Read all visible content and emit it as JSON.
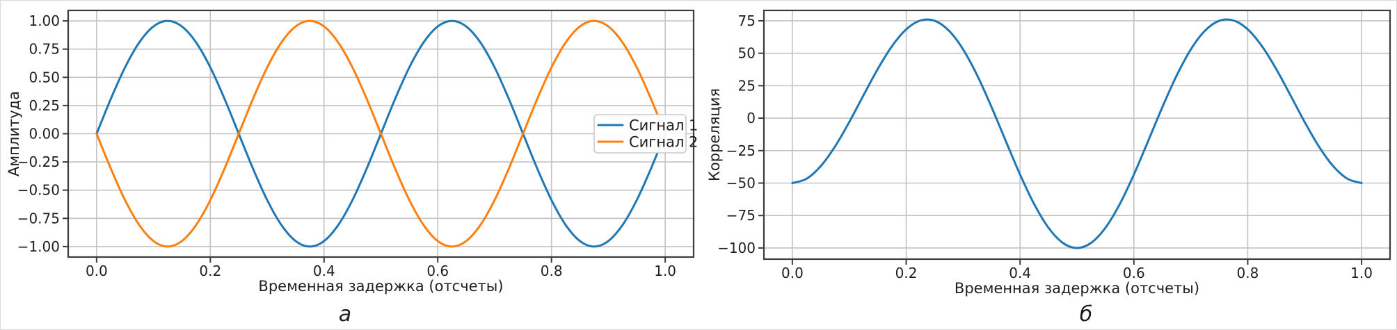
{
  "figure": {
    "background": "#ffffff",
    "colors": {
      "grid": "#c3c3c3",
      "spine": "#3c3c3c",
      "tick": "#3c3c3c",
      "text": "#1f1f1f",
      "legend_border": "#c9c9c9",
      "legend_background": "#ffffff"
    }
  },
  "chart_data": [
    {
      "type": "line",
      "caption": "а",
      "xlabel": "Временная задержка (отсчеты)",
      "ylabel": "Амплитуда",
      "xlim": [
        -0.05,
        1.05
      ],
      "ylim": [
        -1.093,
        1.093
      ],
      "xticks": [
        0,
        0.2,
        0.4,
        0.6,
        0.8,
        1.0
      ],
      "xtick_labels": [
        "0.0",
        "0.2",
        "0.4",
        "0.6",
        "0.8",
        "1.0"
      ],
      "yticks": [
        1.0,
        0.75,
        0.5,
        0.25,
        0,
        -0.25,
        -0.5,
        -0.75,
        -1.0
      ],
      "ytick_labels": [
        "1.00",
        "0.75",
        "0.50",
        "0.25",
        "0.00",
        "−0.25",
        "−0.50",
        "−0.75",
        "−1.00"
      ],
      "grid": true,
      "legend": {
        "position": "center right",
        "entries": [
          "Сигнал 1",
          "Сигнал 2"
        ]
      },
      "x": [
        0,
        0.025,
        0.05,
        0.075,
        0.1,
        0.125,
        0.15,
        0.175,
        0.2,
        0.225,
        0.25,
        0.275,
        0.3,
        0.325,
        0.35,
        0.375,
        0.4,
        0.425,
        0.45,
        0.475,
        0.5,
        0.525,
        0.55,
        0.575,
        0.6,
        0.625,
        0.65,
        0.675,
        0.7,
        0.725,
        0.75,
        0.775,
        0.8,
        0.825,
        0.85,
        0.875,
        0.9,
        0.925,
        0.95,
        0.975,
        1
      ],
      "series": [
        {
          "id": "signal1",
          "name": "Сигнал 1",
          "color": "#1f77b4",
          "values": [
            0,
            0.309,
            0.588,
            0.809,
            0.951,
            1,
            0.951,
            0.809,
            0.588,
            0.309,
            0,
            -0.309,
            -0.588,
            -0.809,
            -0.951,
            -1,
            -0.951,
            -0.809,
            -0.588,
            -0.309,
            0,
            0.309,
            0.588,
            0.809,
            0.951,
            1,
            0.951,
            0.809,
            0.588,
            0.309,
            0,
            -0.309,
            -0.588,
            -0.809,
            -0.951,
            -1,
            -0.951,
            -0.809,
            -0.588,
            -0.309,
            0
          ]
        },
        {
          "id": "signal2",
          "name": "Сигнал 2",
          "color": "#ff7f0e",
          "values": [
            0,
            -0.309,
            -0.588,
            -0.809,
            -0.951,
            -1,
            -0.951,
            -0.809,
            -0.588,
            -0.309,
            0,
            0.309,
            0.588,
            0.809,
            0.951,
            1,
            0.951,
            0.809,
            0.588,
            0.309,
            0,
            -0.309,
            -0.588,
            -0.809,
            -0.951,
            -1,
            -0.951,
            -0.809,
            -0.588,
            -0.309,
            0,
            0.309,
            0.588,
            0.809,
            0.951,
            1,
            0.951,
            0.809,
            0.588,
            0.309,
            0
          ]
        }
      ]
    },
    {
      "type": "line",
      "caption": "б",
      "xlabel": "Временная задержка (отсчеты)",
      "ylabel": "Корреляция",
      "xlim": [
        -0.05,
        1.05
      ],
      "ylim": [
        -108.6,
        83.0
      ],
      "xticks": [
        0,
        0.2,
        0.4,
        0.6,
        0.8,
        1.0
      ],
      "xtick_labels": [
        "0.0",
        "0.2",
        "0.4",
        "0.6",
        "0.8",
        "1.0"
      ],
      "yticks": [
        75,
        50,
        25,
        0,
        -25,
        -50,
        -75,
        -100
      ],
      "ytick_labels": [
        "75",
        "50",
        "25",
        "0",
        "−25",
        "−50",
        "−75",
        "−100"
      ],
      "grid": true,
      "legend": null,
      "x": [
        0,
        0.025,
        0.05,
        0.075,
        0.1,
        0.125,
        0.15,
        0.175,
        0.2,
        0.225,
        0.25,
        0.275,
        0.3,
        0.325,
        0.35,
        0.375,
        0.4,
        0.425,
        0.45,
        0.475,
        0.5,
        0.525,
        0.55,
        0.575,
        0.6,
        0.625,
        0.65,
        0.675,
        0.7,
        0.725,
        0.75,
        0.775,
        0.8,
        0.825,
        0.85,
        0.875,
        0.9,
        0.925,
        0.95,
        0.975,
        1
      ],
      "series": [
        {
          "id": "correlation",
          "name": "Корреляция",
          "color": "#1f77b4",
          "values": [
            -50,
            -46.64,
            -36.9,
            -21.81,
            -2.95,
            17.68,
            37.87,
            55.43,
            68.4,
            75.24,
            75,
            67.42,
            52.95,
            32.73,
            8.48,
            -17.68,
            -43.4,
            -66.36,
            -84.45,
            -96.02,
            -100,
            -96.02,
            -84.45,
            -66.36,
            -43.4,
            -17.68,
            8.48,
            32.73,
            52.95,
            67.42,
            75,
            75.24,
            68.4,
            55.43,
            37.87,
            17.68,
            -2.95,
            -21.81,
            -36.9,
            -46.64,
            -50
          ]
        }
      ]
    }
  ]
}
